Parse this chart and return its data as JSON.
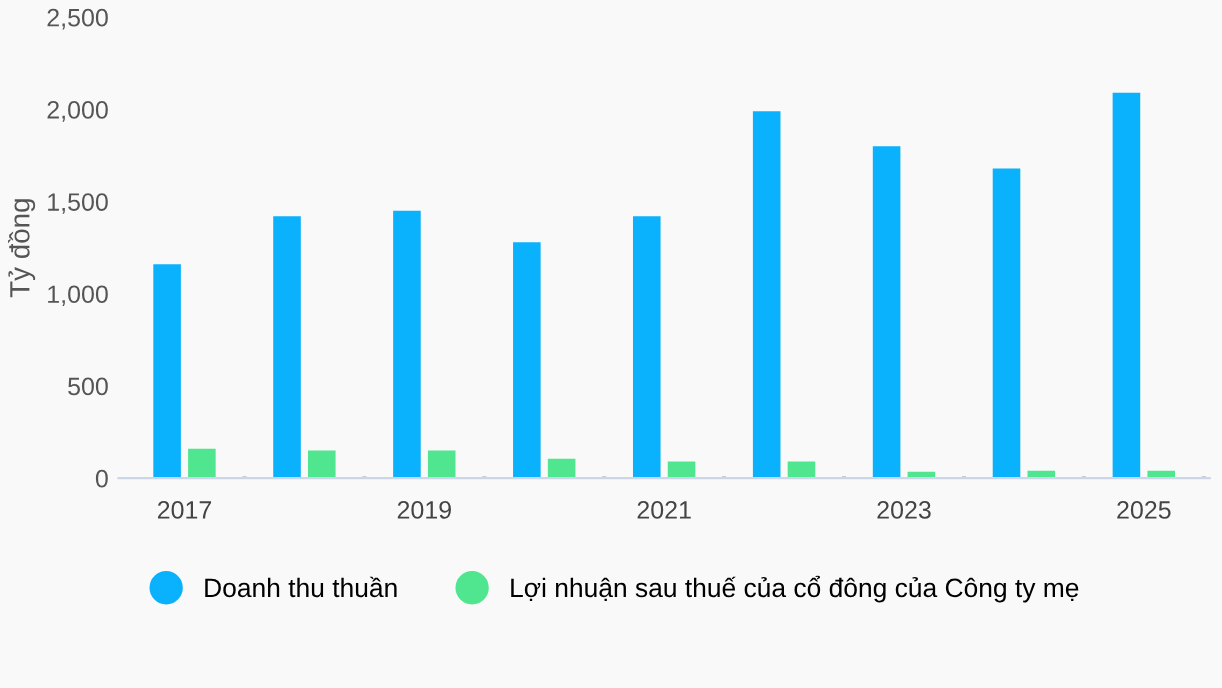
{
  "chart_data": {
    "type": "bar",
    "ylabel": "Tỷ đồng",
    "categories": [
      "2017",
      null,
      "2019",
      null,
      "2021",
      null,
      "2023",
      null,
      "2025"
    ],
    "series": [
      {
        "name": "Doanh thu thuần",
        "color": "#0ab1fd",
        "values": [
          1160,
          1420,
          1450,
          1280,
          1420,
          1990,
          1800,
          1680,
          2090
        ]
      },
      {
        "name": "Lợi nhuận sau thuế của cổ đông của Công ty mẹ",
        "color": "#50e58f",
        "values": [
          160,
          150,
          150,
          105,
          90,
          90,
          35,
          40,
          40
        ]
      }
    ],
    "ylim": [
      0,
      2500
    ],
    "yticks": [
      {
        "value": 0,
        "label": "0"
      },
      {
        "value": 500,
        "label": "500"
      },
      {
        "value": 1000,
        "label": "1,000"
      },
      {
        "value": 1500,
        "label": "1,500"
      },
      {
        "value": 2000,
        "label": "2,000"
      },
      {
        "value": 2500,
        "label": "2,500"
      }
    ],
    "grid": false,
    "legend": "bottom"
  }
}
